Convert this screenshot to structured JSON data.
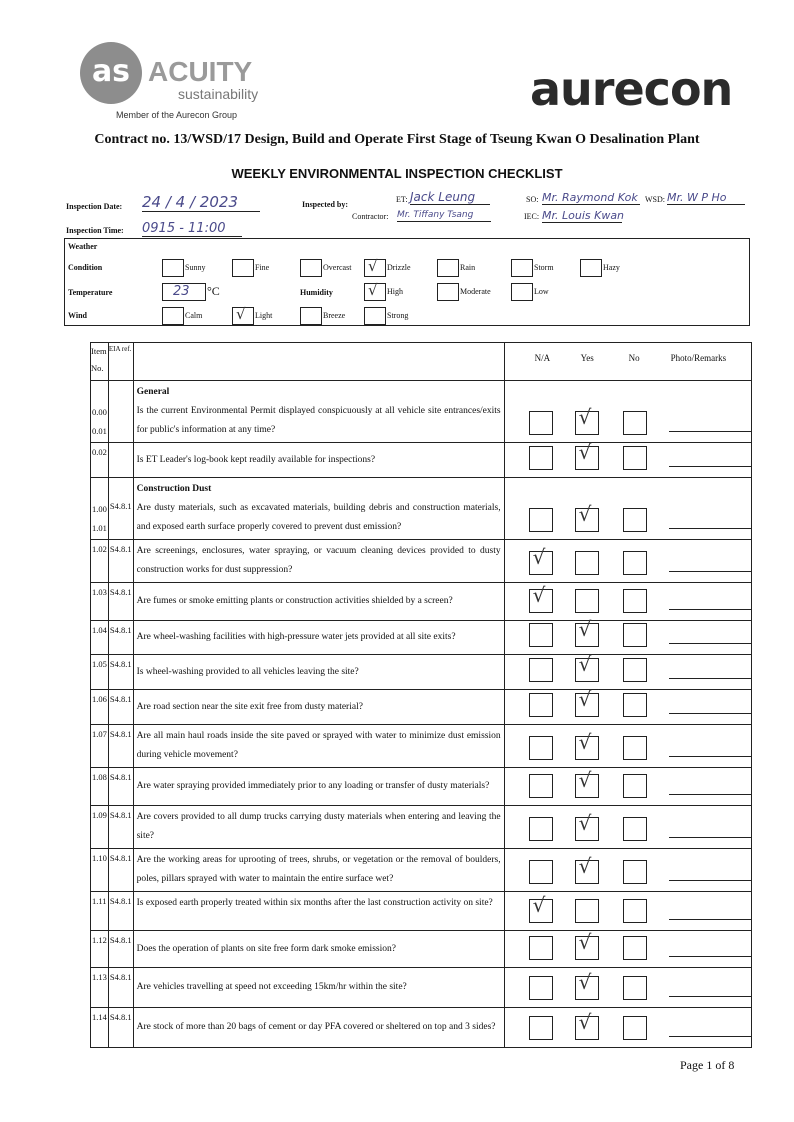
{
  "header": {
    "acuity_logo": "ACUITY",
    "acuity_sub": "sustainability",
    "member_text": "Member of the Aurecon Group",
    "aurecon_logo": "aurecon",
    "contract": "Contract no. 13/WSD/17 Design, Build and Operate First Stage of Tseung Kwan O Desalination Plant",
    "title": "WEEKLY ENVIRONMENTAL INSPECTION CHECKLIST"
  },
  "info": {
    "date_label": "Inspection Date:",
    "date_value": "24 / 4 / 2023",
    "time_label": "Inspection Time:",
    "time_value": "0915 - 11:00",
    "inspected_by_label": "Inspected by:",
    "et_label": "ET:",
    "et_value": "Jack Leung",
    "contractor_label": "Contractor:",
    "contractor_value": "Mr. Tiffany Tsang",
    "so_label": "SO:",
    "so_value": "Mr. Raymond Kok",
    "iec_label": "IEC:",
    "iec_value": "Mr. Louis Kwan",
    "wsd_label": "WSD:",
    "wsd_value": "Mr. W P Ho"
  },
  "weather": {
    "title": "Weather",
    "condition_label": "Condition",
    "temperature_label": "Temperature",
    "humidity_label": "Humidity",
    "wind_label": "Wind",
    "temperature_value": "23",
    "temperature_unit": "°C",
    "conditions": [
      {
        "label": "Sunny",
        "checked": false
      },
      {
        "label": "Fine",
        "checked": false
      },
      {
        "label": "Overcast",
        "checked": false
      },
      {
        "label": "Drizzle",
        "checked": true
      },
      {
        "label": "Rain",
        "checked": false
      },
      {
        "label": "Storm",
        "checked": false
      },
      {
        "label": "Hazy",
        "checked": false
      }
    ],
    "humidity": [
      {
        "label": "High",
        "checked": true
      },
      {
        "label": "Moderate",
        "checked": false
      },
      {
        "label": "Low",
        "checked": false
      }
    ],
    "wind": [
      {
        "label": "Calm",
        "checked": false
      },
      {
        "label": "Light",
        "checked": true
      },
      {
        "label": "Breeze",
        "checked": false
      },
      {
        "label": "Strong",
        "checked": false
      }
    ]
  },
  "table": {
    "headers": {
      "item": "Item No.",
      "eia": "EIA ref.",
      "na": "N/A",
      "yes": "Yes",
      "no": "No",
      "remarks": "Photo/Remarks"
    },
    "rows": [
      {
        "item": "0.00\n0.01",
        "eia": "",
        "section": "General",
        "q": "Is the current Environmental Permit displayed conspicuously at all vehicle site entrances/exits for public's information at any time?",
        "answer": "yes"
      },
      {
        "item": "0.02",
        "eia": "",
        "section": "",
        "q": "Is ET Leader's log-book kept readily available for inspections?",
        "answer": "yes"
      },
      {
        "item": "1.00\n1.01",
        "eia": "S4.8.1",
        "section": "Construction Dust",
        "q": "Are dusty materials, such as excavated materials, building debris and construction materials, and exposed earth surface properly covered to prevent dust emission?",
        "answer": "yes"
      },
      {
        "item": "1.02",
        "eia": "S4.8.1",
        "section": "",
        "q": "Are screenings, enclosures, water spraying, or vacuum cleaning devices provided to dusty construction works for dust suppression?",
        "answer": "na"
      },
      {
        "item": "1.03",
        "eia": "S4.8.1",
        "section": "",
        "q": "Are fumes or smoke emitting plants or construction activities shielded by a screen?",
        "answer": "na"
      },
      {
        "item": "1.04",
        "eia": "S4.8.1",
        "section": "",
        "q": "Are wheel-washing facilities with high-pressure water jets provided at all site exits?",
        "answer": "yes"
      },
      {
        "item": "1.05",
        "eia": "S4.8.1",
        "section": "",
        "q": "Is wheel-washing provided to all vehicles leaving the site?",
        "answer": "yes"
      },
      {
        "item": "1.06",
        "eia": "S4.8.1",
        "section": "",
        "q": "Are road section near the site exit free from dusty material?",
        "answer": "yes"
      },
      {
        "item": "1.07",
        "eia": "S4.8.1",
        "section": "",
        "q": "Are all main haul roads inside the site paved or sprayed with water to minimize dust emission during vehicle movement?",
        "answer": "yes"
      },
      {
        "item": "1.08",
        "eia": "S4.8.1",
        "section": "",
        "q": "Are water spraying provided immediately prior to any loading or transfer of dusty materials?",
        "answer": "yes"
      },
      {
        "item": "1.09",
        "eia": "S4.8.1",
        "section": "",
        "q": "Are covers provided to all dump trucks carrying dusty materials when entering and leaving the site?",
        "answer": "yes"
      },
      {
        "item": "1.10",
        "eia": "S4.8.1",
        "section": "",
        "q": "Are the working areas for uprooting of trees, shrubs, or vegetation or the removal of boulders, poles, pillars sprayed with water to maintain the entire surface wet?",
        "answer": "yes"
      },
      {
        "item": "1.11",
        "eia": "S4.8.1",
        "section": "",
        "q": "Is exposed earth properly treated within six months after the last construction activity on site?",
        "answer": "na"
      },
      {
        "item": "1.12",
        "eia": "S4.8.1",
        "section": "",
        "q": "Does the operation of plants on site free form dark smoke emission?",
        "answer": "yes"
      },
      {
        "item": "1.13",
        "eia": "S4.8.1",
        "section": "",
        "q": "Are vehicles travelling at speed not exceeding 15km/hr within the site?",
        "answer": "yes"
      },
      {
        "item": "1.14",
        "eia": "S4.8.1",
        "section": "",
        "q": "Are stock of more than 20 bags of cement or day PFA covered or sheltered on top and 3 sides?",
        "answer": "yes"
      }
    ]
  },
  "footer": {
    "page": "Page 1 of 8"
  },
  "colors": {
    "acuity_grey": "#9a9a9a",
    "aurecon_dark": "#2b2b2b",
    "handwriting": "#4a4a8a"
  }
}
